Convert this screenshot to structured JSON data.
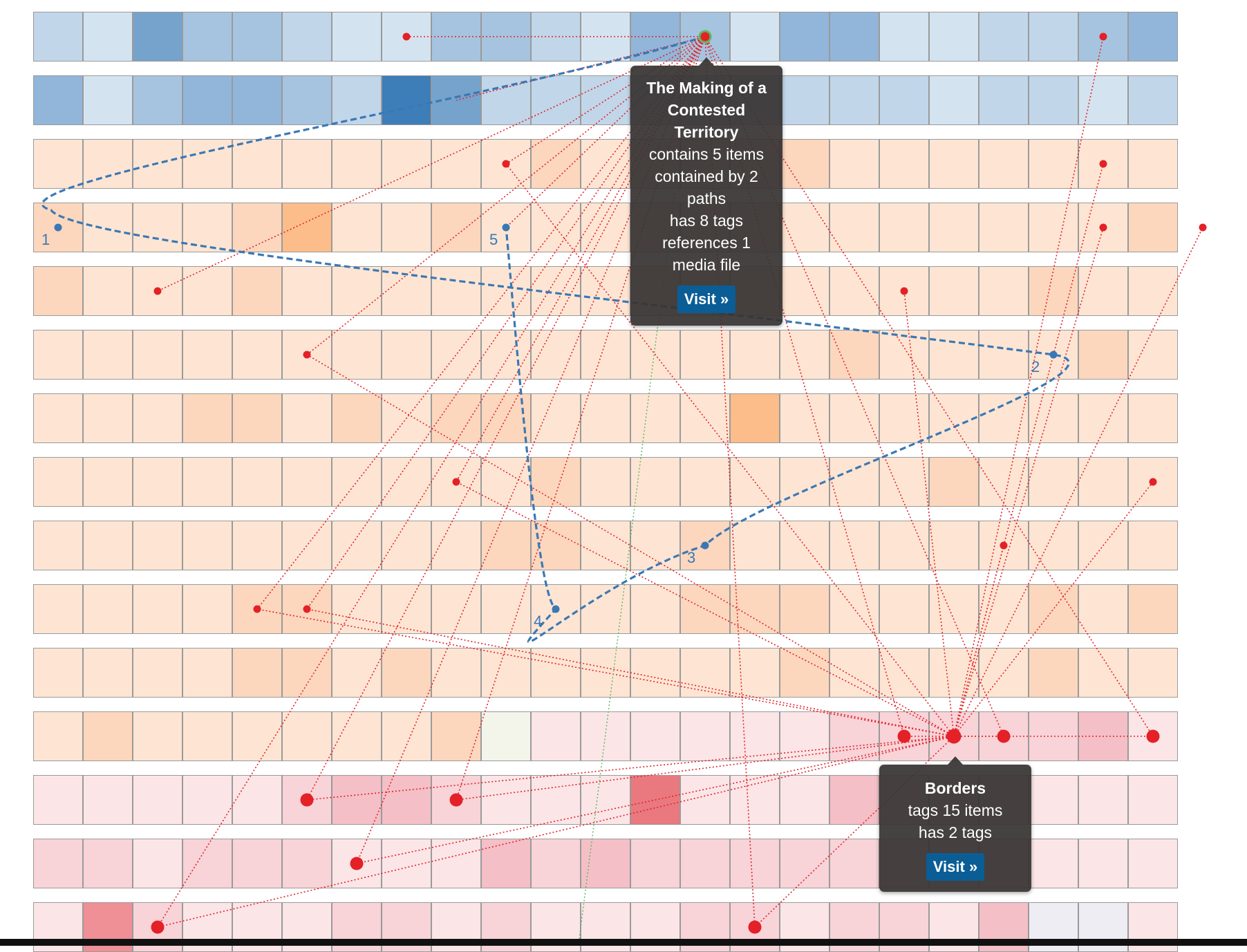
{
  "colors": {
    "blue_levels": [
      "#d4e3f0",
      "#c1d6e9",
      "#a6c4df",
      "#92b5da",
      "#75a3cc",
      "#3d7db8"
    ],
    "orange_levels": [
      "#fff1e6",
      "#fee5d3",
      "#fcd7bd",
      "#fcbd8b"
    ],
    "red_levels": [
      "#fbe5e7",
      "#f8d3d8",
      "#f4bfc6",
      "#ef8f96",
      "#e9797f"
    ],
    "special_cells": {
      "green": "#f3f5ea",
      "lavender": "#efedf4"
    },
    "item_link": "#e32127",
    "tag_link": "#e32127",
    "path_line": "#3a78b5",
    "path_link": "#59b35d",
    "tooltip_bg": "#373433",
    "button_bg": "#0b5d95"
  },
  "grid": {
    "rows": [
      [
        1,
        0,
        4,
        2,
        2,
        1,
        0,
        0,
        2,
        2,
        1,
        0,
        3,
        2,
        0,
        3,
        3,
        0,
        0,
        1,
        1,
        2,
        3
      ],
      [
        3,
        0,
        2,
        3,
        3,
        2,
        1,
        5,
        4,
        1,
        1,
        1,
        1,
        1,
        1,
        1,
        1,
        1,
        0,
        1,
        1,
        0,
        1
      ],
      [
        1,
        1,
        1,
        1,
        1,
        1,
        1,
        1,
        1,
        1,
        2,
        1,
        1,
        1,
        1,
        2,
        1,
        1,
        1,
        1,
        1,
        1,
        1
      ],
      [
        2,
        1,
        1,
        1,
        2,
        3,
        1,
        1,
        2,
        1,
        1,
        1,
        1,
        1,
        1,
        1,
        1,
        1,
        1,
        1,
        1,
        1,
        2
      ],
      [
        2,
        1,
        1,
        1,
        2,
        1,
        1,
        1,
        1,
        1,
        1,
        1,
        1,
        1,
        1,
        1,
        1,
        1,
        1,
        1,
        2,
        1,
        1
      ],
      [
        1,
        1,
        1,
        1,
        1,
        1,
        1,
        1,
        1,
        1,
        1,
        1,
        1,
        1,
        1,
        1,
        2,
        1,
        1,
        1,
        1,
        2,
        1
      ],
      [
        1,
        1,
        1,
        2,
        2,
        1,
        2,
        1,
        2,
        2,
        1,
        1,
        1,
        1,
        3,
        1,
        1,
        1,
        1,
        1,
        1,
        1,
        1
      ],
      [
        1,
        1,
        1,
        1,
        1,
        1,
        1,
        1,
        1,
        1,
        2,
        1,
        1,
        1,
        1,
        1,
        1,
        1,
        2,
        1,
        1,
        1,
        1
      ],
      [
        1,
        1,
        1,
        1,
        1,
        1,
        1,
        1,
        1,
        2,
        2,
        1,
        1,
        2,
        1,
        1,
        1,
        1,
        1,
        1,
        1,
        1,
        1
      ],
      [
        1,
        1,
        1,
        1,
        2,
        2,
        1,
        1,
        1,
        1,
        1,
        1,
        1,
        2,
        2,
        2,
        1,
        1,
        1,
        1,
        2,
        1,
        2
      ],
      [
        1,
        1,
        1,
        1,
        2,
        2,
        1,
        2,
        1,
        1,
        1,
        1,
        1,
        1,
        1,
        2,
        1,
        1,
        1,
        1,
        2,
        1,
        1
      ],
      [
        1,
        2,
        1,
        1,
        1,
        1,
        1,
        1,
        2,
        "g",
        0,
        0,
        0,
        0,
        0,
        0,
        1,
        1,
        1,
        1,
        1,
        2,
        0
      ],
      [
        0,
        0,
        0,
        0,
        0,
        1,
        2,
        2,
        1,
        0,
        0,
        0,
        4,
        0,
        0,
        0,
        2,
        1,
        1,
        1,
        0,
        0,
        0
      ],
      [
        1,
        1,
        0,
        1,
        1,
        1,
        0,
        0,
        0,
        2,
        1,
        2,
        1,
        1,
        1,
        1,
        1,
        1,
        1,
        1,
        0,
        0,
        0
      ],
      [
        0,
        3,
        1,
        0,
        0,
        0,
        1,
        1,
        0,
        1,
        0,
        0,
        0,
        1,
        1,
        0,
        1,
        1,
        0,
        2,
        "l",
        "l",
        0
      ]
    ],
    "row_types": [
      "blue",
      "blue",
      "orange",
      "orange",
      "orange",
      "orange",
      "orange",
      "orange",
      "orange",
      "orange",
      "orange",
      "orange",
      "red",
      "red",
      "red"
    ],
    "row_11_split_col": 10
  },
  "item_node": {
    "row": 0,
    "col": 13
  },
  "tag_node": {
    "row": 11,
    "col": 18
  },
  "item_links": [
    [
      0,
      7
    ],
    [
      1,
      8
    ],
    [
      2,
      9
    ],
    [
      3,
      9
    ],
    [
      4,
      2
    ],
    [
      5,
      5
    ],
    [
      7,
      8
    ],
    [
      9,
      4
    ],
    [
      9,
      5
    ],
    [
      12,
      5
    ],
    [
      12,
      8
    ],
    [
      13,
      6
    ],
    [
      14,
      2
    ],
    [
      14,
      14
    ],
    [
      11,
      17
    ],
    [
      11,
      19
    ],
    [
      11,
      22
    ]
  ],
  "tag_links": [
    [
      0,
      21
    ],
    [
      2,
      21
    ],
    [
      3,
      21
    ],
    [
      3,
      23
    ],
    [
      4,
      17
    ],
    [
      7,
      22
    ],
    [
      8,
      19
    ],
    [
      9,
      4
    ],
    [
      9,
      5
    ],
    [
      5,
      5
    ],
    [
      7,
      8
    ],
    [
      2,
      9
    ],
    [
      11,
      17
    ],
    [
      11,
      19
    ],
    [
      11,
      22
    ],
    [
      14,
      14
    ],
    [
      12,
      8
    ],
    [
      12,
      5
    ],
    [
      13,
      6
    ],
    [
      14,
      2
    ]
  ],
  "path": {
    "label": "path-1",
    "stops": [
      {
        "row": 3,
        "col": 0,
        "label": "1"
      },
      {
        "row": 5,
        "col": 20,
        "label": "2"
      },
      {
        "row": 8,
        "col": 13,
        "label": "3"
      },
      {
        "row": 9,
        "col": 10,
        "label": "4"
      },
      {
        "row": 3,
        "col": 9,
        "label": "5"
      }
    ]
  },
  "tooltips": {
    "item": {
      "title": "The Making of a Contested Territory",
      "lines": [
        "contains 5 items",
        "contained by 2 paths",
        "has 8 tags",
        "references 1 media file"
      ],
      "button": "Visit »"
    },
    "tag": {
      "title": "Borders",
      "lines": [
        "tags 15 items",
        "has 2 tags"
      ],
      "button": "Visit »"
    }
  }
}
